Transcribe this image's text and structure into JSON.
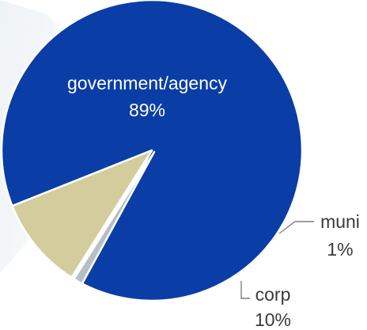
{
  "chart_data": {
    "type": "pie",
    "slices": [
      {
        "label": "government/agency",
        "percent_label": "89%",
        "value": 89,
        "color": "#0a3ea6"
      },
      {
        "label": "muni",
        "percent_label": "1%",
        "value": 1,
        "color": "#b7bec6"
      },
      {
        "label": "corp",
        "percent_label": "10%",
        "value": 10,
        "color": "#d3cc9c"
      }
    ]
  }
}
